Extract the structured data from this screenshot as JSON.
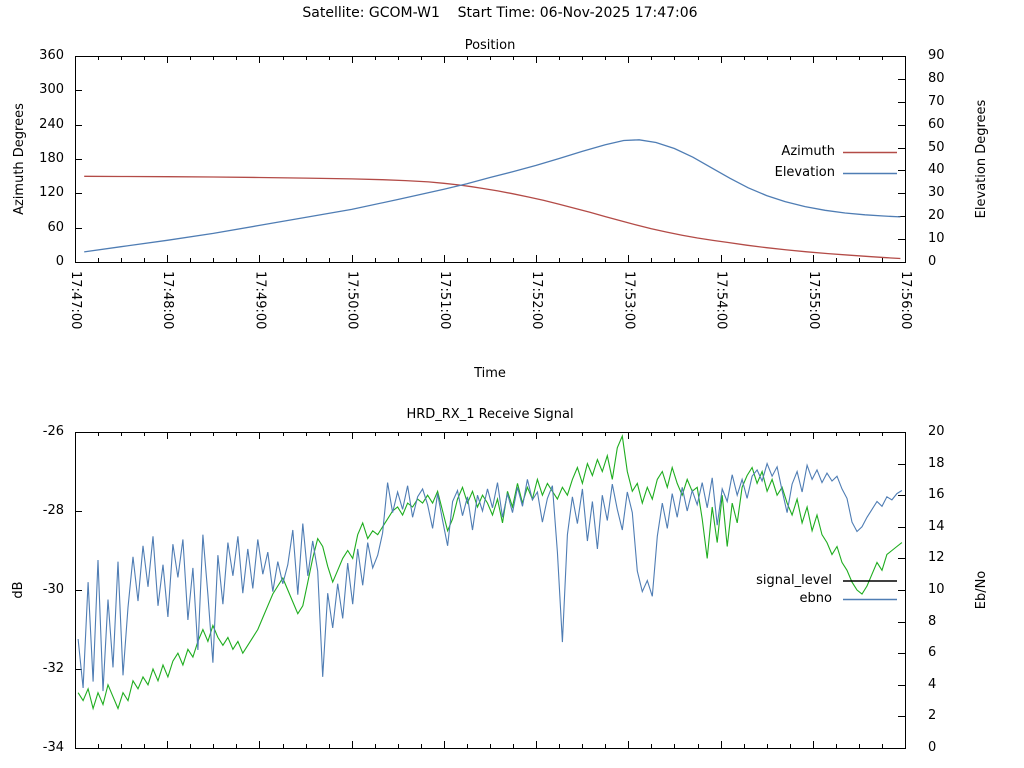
{
  "header": {
    "satellite": "GCOM-W1",
    "start_time": "06-Nov-2025 17:47:06",
    "title": "Satellite: GCOM-W1    Start Time: 06-Nov-2025 17:47:06"
  },
  "chart_data": [
    {
      "type": "line",
      "title": "Position",
      "x_axis": {
        "label": "Time",
        "range": [
          0,
          540
        ],
        "major_tick": 60,
        "minor_tick": 15,
        "tick_labels": [
          "17:47:00",
          "17:48:00",
          "17:49:00",
          "17:50:00",
          "17:51:00",
          "17:52:00",
          "17:53:00",
          "17:54:00",
          "17:55:00",
          "17:56:00"
        ]
      },
      "y_left": {
        "label": "Azimuth Degrees",
        "range": [
          0,
          360
        ],
        "ticks": [
          0,
          60,
          120,
          180,
          240,
          300,
          360
        ]
      },
      "y_right": {
        "label": "Elevation Degrees",
        "range": [
          0,
          90
        ],
        "ticks": [
          0,
          10,
          20,
          30,
          40,
          50,
          60,
          70,
          80,
          90
        ]
      },
      "legend": [
        {
          "label": "Azimuth",
          "color": "#b34b47"
        },
        {
          "label": "Elevation",
          "color": "#4f7db4"
        }
      ],
      "series": [
        {
          "name": "Azimuth",
          "axis": "left",
          "color": "#b34b47",
          "points": [
            [
              6,
              149.8
            ],
            [
              30,
              149.5
            ],
            [
              60,
              149.1
            ],
            [
              90,
              148.5
            ],
            [
              120,
              147.7
            ],
            [
              150,
              146.7
            ],
            [
              180,
              145.2
            ],
            [
              200,
              143.8
            ],
            [
              215,
              142.2
            ],
            [
              230,
              139.9
            ],
            [
              240,
              137.6
            ],
            [
              250,
              134.6
            ],
            [
              258,
              131.6
            ],
            [
              266,
              128.2
            ],
            [
              275,
              124.2
            ],
            [
              285,
              119.2
            ],
            [
              295,
              113.6
            ],
            [
              305,
              107.6
            ],
            [
              315,
              101.0
            ],
            [
              325,
              94.0
            ],
            [
              335,
              86.8
            ],
            [
              345,
              79.4
            ],
            [
              355,
              72.0
            ],
            [
              365,
              64.8
            ],
            [
              375,
              58.2
            ],
            [
              385,
              52.2
            ],
            [
              395,
              46.8
            ],
            [
              405,
              42.0
            ],
            [
              415,
              37.8
            ],
            [
              425,
              34.0
            ],
            [
              437,
              29.4
            ],
            [
              450,
              25.0
            ],
            [
              463,
              21.2
            ],
            [
              476,
              17.8
            ],
            [
              490,
              14.6
            ],
            [
              504,
              11.8
            ],
            [
              518,
              9.2
            ],
            [
              528,
              7.6
            ],
            [
              537,
              6.2
            ]
          ]
        },
        {
          "name": "Elevation",
          "axis": "right",
          "color": "#4f7db4",
          "points": [
            [
              6,
              4.4
            ],
            [
              30,
              6.7
            ],
            [
              60,
              9.5
            ],
            [
              90,
              12.5
            ],
            [
              120,
              16.0
            ],
            [
              150,
              19.5
            ],
            [
              180,
              23.0
            ],
            [
              210,
              27.3
            ],
            [
              240,
              31.8
            ],
            [
              255,
              34.2
            ],
            [
              270,
              36.9
            ],
            [
              285,
              39.5
            ],
            [
              300,
              42.2
            ],
            [
              315,
              45.2
            ],
            [
              330,
              48.3
            ],
            [
              345,
              51.2
            ],
            [
              357,
              53.1
            ],
            [
              367,
              53.4
            ],
            [
              378,
              52.2
            ],
            [
              390,
              49.6
            ],
            [
              402,
              45.8
            ],
            [
              414,
              41.2
            ],
            [
              426,
              36.6
            ],
            [
              438,
              32.4
            ],
            [
              450,
              29.0
            ],
            [
              462,
              26.4
            ],
            [
              475,
              24.2
            ],
            [
              488,
              22.6
            ],
            [
              501,
              21.4
            ],
            [
              514,
              20.6
            ],
            [
              526,
              20.1
            ],
            [
              537,
              19.7
            ]
          ]
        }
      ]
    },
    {
      "type": "line",
      "title": "HRD_RX_1 Receive Signal",
      "x_axis": {
        "range": [
          0,
          540
        ],
        "major_tick": 60,
        "minor_tick": 15
      },
      "y_left": {
        "label": "dB",
        "range": [
          -34,
          -26
        ],
        "ticks": [
          -26,
          -28,
          -30,
          -32,
          -34
        ]
      },
      "y_right": {
        "label": "Eb/No",
        "range": [
          0,
          20
        ],
        "ticks": [
          0,
          2,
          4,
          6,
          8,
          10,
          12,
          14,
          16,
          18,
          20
        ]
      },
      "legend": [
        {
          "label": "signal_level",
          "color": "#000000"
        },
        {
          "label": "ebno",
          "color": "#4f7db4"
        }
      ],
      "series": [
        {
          "name": "signal_level",
          "axis": "left",
          "color": "#1fad1f",
          "t_start": 2,
          "t_end": 538,
          "values": [
            -32.6,
            -32.8,
            -32.5,
            -33.0,
            -32.6,
            -32.9,
            -32.4,
            -32.7,
            -33.0,
            -32.6,
            -32.8,
            -32.3,
            -32.5,
            -32.2,
            -32.4,
            -32.0,
            -32.3,
            -31.9,
            -32.2,
            -31.8,
            -31.6,
            -31.9,
            -31.5,
            -31.7,
            -31.3,
            -31.0,
            -31.3,
            -30.9,
            -31.2,
            -31.4,
            -31.2,
            -31.5,
            -31.3,
            -31.6,
            -31.4,
            -31.2,
            -31.0,
            -30.7,
            -30.4,
            -30.1,
            -29.9,
            -29.7,
            -30.0,
            -30.3,
            -30.6,
            -30.4,
            -29.8,
            -29.2,
            -28.7,
            -28.9,
            -29.4,
            -29.8,
            -29.5,
            -29.2,
            -29.0,
            -29.2,
            -28.6,
            -28.3,
            -28.7,
            -28.5,
            -28.6,
            -28.4,
            -28.2,
            -28.0,
            -27.9,
            -28.1,
            -27.8,
            -27.9,
            -27.7,
            -27.8,
            -27.6,
            -27.8,
            -27.5,
            -28.0,
            -28.5,
            -28.2,
            -27.7,
            -27.4,
            -27.8,
            -27.5,
            -27.9,
            -27.6,
            -27.8,
            -28.1,
            -27.7,
            -28.3,
            -27.5,
            -27.9,
            -27.3,
            -27.8,
            -27.4,
            -27.7,
            -27.2,
            -27.6,
            -27.3,
            -27.5,
            -27.7,
            -27.4,
            -27.6,
            -27.2,
            -26.9,
            -27.3,
            -26.8,
            -27.1,
            -26.7,
            -27.0,
            -26.6,
            -27.2,
            -26.4,
            -26.1,
            -27.0,
            -27.5,
            -27.3,
            -27.8,
            -27.4,
            -27.7,
            -27.2,
            -27.0,
            -27.4,
            -26.9,
            -27.3,
            -27.6,
            -27.2,
            -27.5,
            -27.4,
            -28.2,
            -29.2,
            -27.9,
            -28.8,
            -27.6,
            -28.9,
            -27.8,
            -28.3,
            -27.4,
            -27.1,
            -26.9,
            -27.3,
            -27.0,
            -27.5,
            -27.2,
            -27.6,
            -27.4,
            -27.8,
            -28.1,
            -27.7,
            -28.3,
            -27.9,
            -28.5,
            -28.1,
            -28.6,
            -28.8,
            -29.1,
            -28.9,
            -29.3,
            -29.5,
            -29.8,
            -30.0,
            -30.1,
            -29.9,
            -29.6,
            -29.3,
            -29.5,
            -29.1,
            -29.0,
            -28.9,
            -28.8
          ]
        },
        {
          "name": "ebno",
          "axis": "right",
          "color": "#4f7db4",
          "t_start": 2,
          "t_end": 538,
          "values": [
            6.9,
            3.8,
            10.5,
            4.2,
            11.9,
            3.6,
            9.4,
            5.1,
            11.8,
            4.6,
            8.9,
            12.1,
            9.3,
            12.8,
            10.2,
            13.4,
            9.0,
            11.6,
            8.3,
            12.9,
            10.8,
            13.2,
            8.1,
            11.4,
            6.2,
            13.5,
            9.7,
            5.4,
            12.2,
            9.1,
            13.0,
            10.9,
            13.4,
            9.8,
            12.6,
            10.1,
            13.2,
            11.0,
            12.4,
            9.9,
            11.8,
            10.4,
            11.6,
            13.8,
            9.7,
            14.2,
            10.9,
            13.1,
            11.2,
            4.5,
            9.8,
            7.6,
            10.4,
            8.2,
            11.7,
            9.1,
            12.6,
            10.3,
            13.0,
            11.4,
            12.2,
            13.6,
            16.8,
            14.9,
            16.2,
            15.1,
            16.6,
            14.6,
            15.9,
            16.4,
            15.4,
            13.9,
            16.1,
            14.4,
            12.8,
            15.6,
            16.3,
            14.7,
            15.9,
            13.8,
            16.0,
            15.0,
            16.4,
            15.2,
            16.8,
            14.6,
            16.1,
            14.9,
            16.5,
            15.3,
            17.0,
            15.7,
            16.2,
            14.3,
            15.8,
            16.6,
            12.4,
            6.7,
            13.5,
            15.9,
            14.2,
            16.4,
            13.1,
            15.6,
            12.6,
            16.0,
            14.4,
            16.7,
            15.1,
            13.8,
            16.2,
            14.9,
            11.2,
            9.9,
            10.6,
            9.6,
            13.4,
            15.5,
            13.9,
            16.1,
            14.6,
            16.5,
            15.0,
            16.3,
            15.4,
            16.8,
            15.2,
            17.1,
            14.1,
            16.4,
            15.6,
            17.3,
            16.0,
            17.0,
            15.8,
            17.2,
            17.6,
            16.9,
            18.0,
            17.2,
            17.8,
            16.3,
            14.9,
            16.7,
            17.5,
            16.2,
            17.9,
            17.0,
            17.6,
            16.8,
            17.4,
            16.9,
            17.2,
            16.4,
            15.8,
            14.3,
            13.7,
            14.0,
            14.6,
            15.1,
            15.6,
            15.3,
            15.9,
            15.7,
            16.1,
            16.3
          ]
        }
      ]
    }
  ]
}
